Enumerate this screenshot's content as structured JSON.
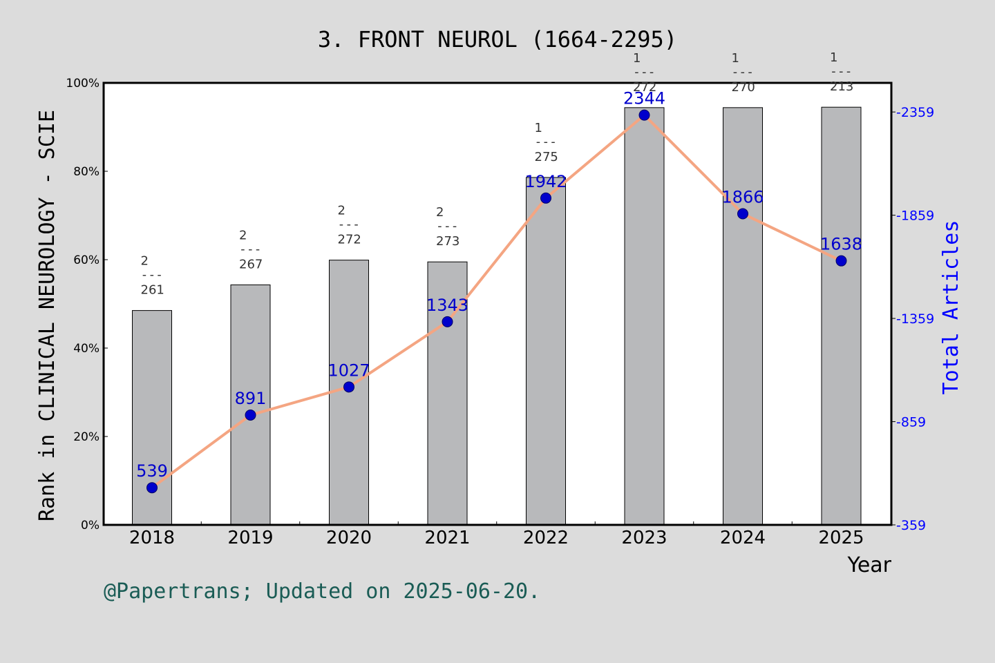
{
  "chart_data": {
    "type": "bar",
    "title": "3. FRONT NEUROL (1664-2295)",
    "xlabel": "Year",
    "ylabel_left": "Rank in CLINICAL NEUROLOGY - SCIE",
    "ylabel_right": "Total Articles",
    "footer": "@Papertrans; Updated on 2025-06-20.",
    "categories": [
      "2018",
      "2019",
      "2020",
      "2021",
      "2022",
      "2023",
      "2024",
      "2025"
    ],
    "left_axis": {
      "ylim": [
        0,
        100
      ],
      "ticks": [
        0,
        20,
        40,
        60,
        80,
        100
      ],
      "tick_labels": [
        "0%",
        "20%",
        "40%",
        "60%",
        "80%",
        "100%"
      ]
    },
    "right_axis": {
      "ylim": [
        359,
        2500
      ],
      "ticks": [
        359,
        859,
        1359,
        1859,
        2359
      ],
      "tick_labels": [
        "359",
        "859",
        "1359",
        "1859",
        "2359"
      ]
    },
    "series": [
      {
        "kind": "bar",
        "values": [
          48.5,
          54.3,
          59.9,
          59.5,
          78.6,
          94.4,
          94.4,
          94.5
        ],
        "rank_labels": [
          {
            "rank": "2",
            "dash": "---",
            "total": "261"
          },
          {
            "rank": "2",
            "dash": "---",
            "total": "267"
          },
          {
            "rank": "2",
            "dash": "---",
            "total": "272"
          },
          {
            "rank": "2",
            "dash": "---",
            "total": "273"
          },
          {
            "rank": "1",
            "dash": "---",
            "total": "275"
          },
          {
            "rank": "1",
            "dash": "---",
            "total": "272"
          },
          {
            "rank": "1",
            "dash": "---",
            "total": "270"
          },
          {
            "rank": "1",
            "dash": "---",
            "total": "213"
          }
        ]
      },
      {
        "kind": "line",
        "axis": "right",
        "values": [
          539,
          891,
          1027,
          1343,
          1942,
          2344,
          1866,
          1638
        ],
        "labels": [
          "539",
          "891",
          "1027",
          "1343",
          "1942",
          "2344",
          "1866",
          "1638"
        ]
      }
    ],
    "colors": {
      "background": "#dcdcdc",
      "plot": "#ffffff",
      "bar": "#b8b9bb",
      "line": "#f4a582",
      "marker": "#0000cc",
      "right_axis": "#0000ff",
      "footer": "#1a5c55"
    },
    "grid": false,
    "legend": "none"
  }
}
